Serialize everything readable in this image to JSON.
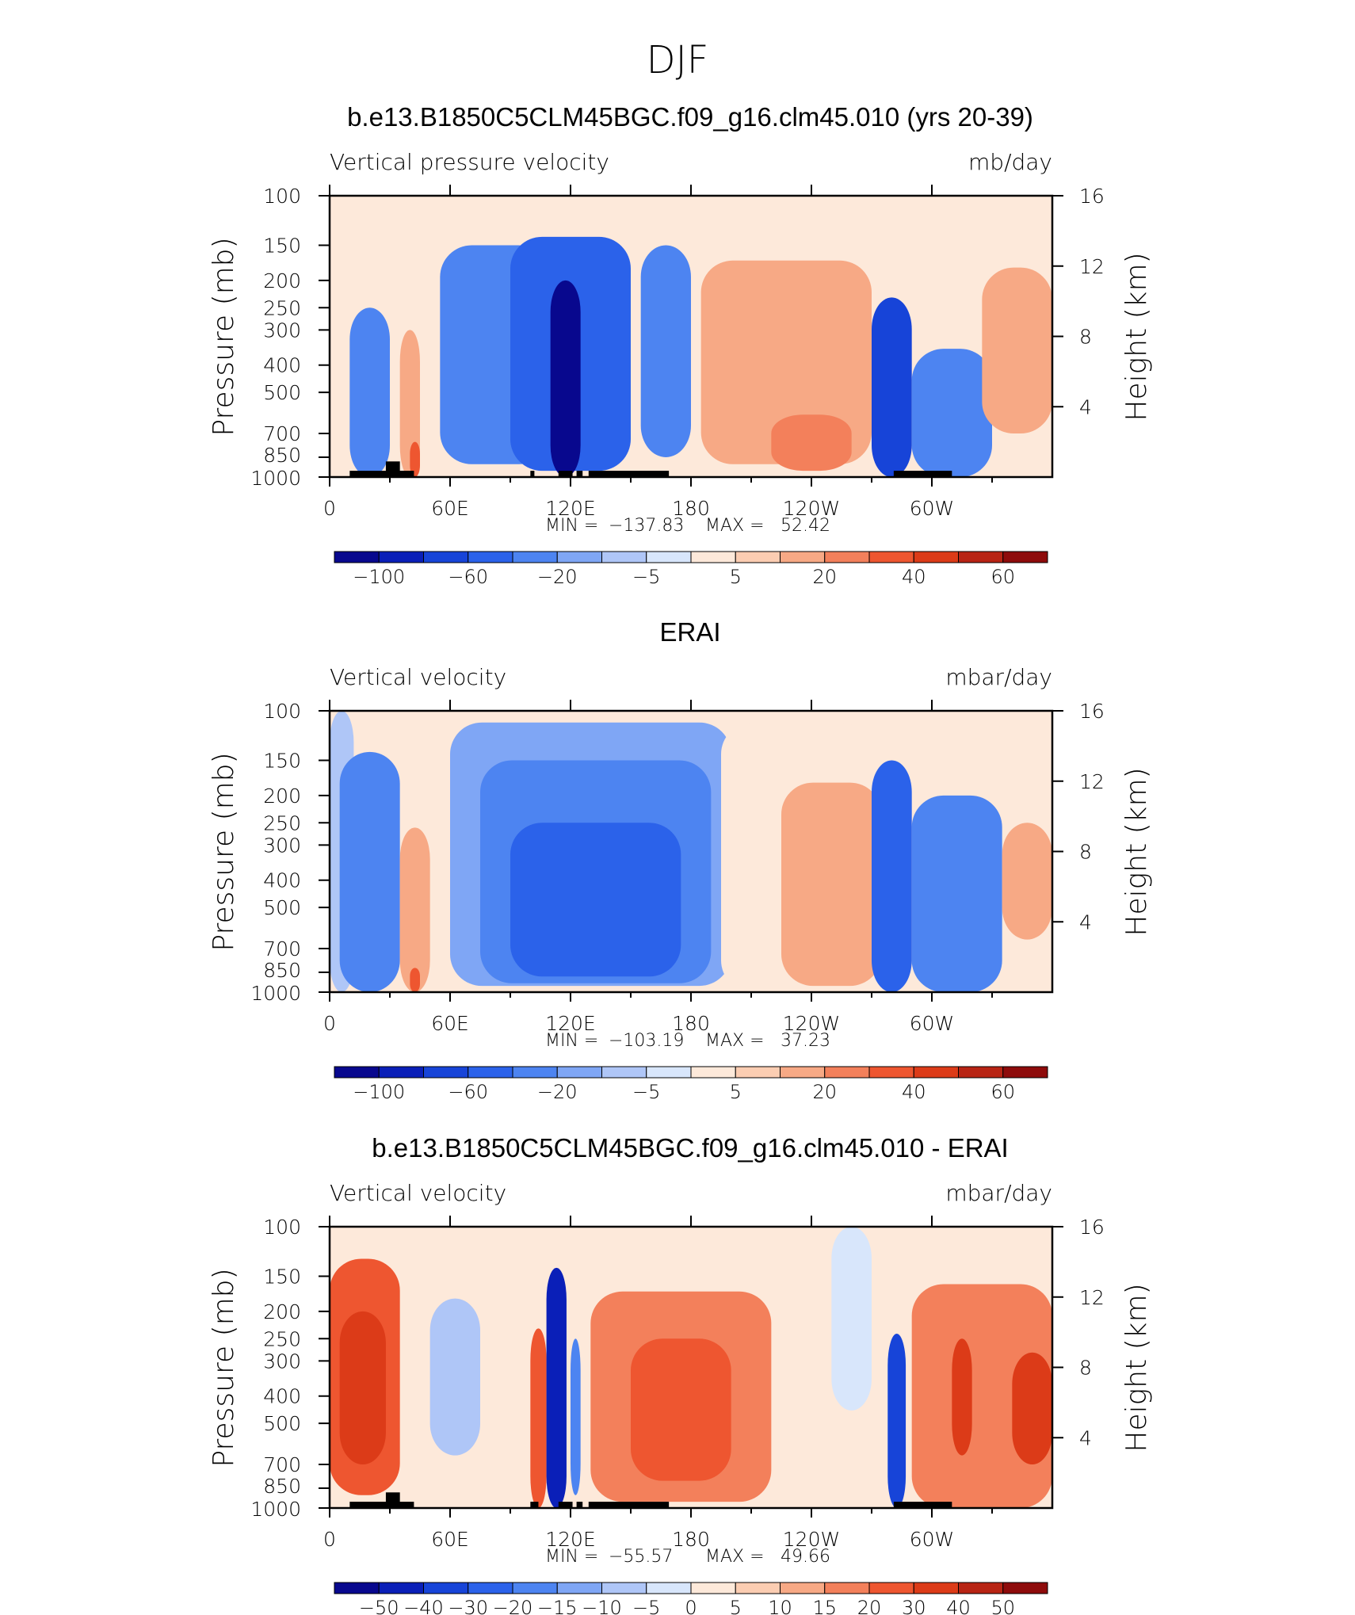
{
  "figure_title": "DJF",
  "panel_titles": [
    "b.e13.B1850C5CLM45BGC.f09_g16.clm45.010 (yrs 20-39)",
    "ERAI",
    "b.e13.B1850C5CLM45BGC.f09_g16.clm45.010 - ERAI"
  ],
  "colors": {
    "cmap": [
      "#08088e",
      "#0a1fb8",
      "#1744d8",
      "#2b62ea",
      "#4d84f1",
      "#7fa6f5",
      "#afc6f7",
      "#d8e6fb",
      "#fde9da",
      "#fbcdb2",
      "#f7a985",
      "#f3805b",
      "#ee5630",
      "#dc3b18",
      "#b82414",
      "#8e0b0b"
    ],
    "axis": "#000000"
  },
  "chart_data": [
    {
      "type": "heatmap",
      "title": "b.e13.B1850C5CLM45BGC.f09_g16.clm45.010 (yrs 20-39)",
      "left_label": "Vertical pressure velocity",
      "units": "mb/day",
      "ylabel": "Pressure (mb)",
      "ylabel_right": "Height (km)",
      "x_ticks": [
        "0",
        "60E",
        "120E",
        "180",
        "120W",
        "60W"
      ],
      "x_range": [
        0,
        360
      ],
      "y_ticks": [
        "100",
        "150",
        "200",
        "250",
        "300",
        "400",
        "500",
        "700",
        "850",
        "1000"
      ],
      "y_range_mb": [
        100,
        1000
      ],
      "y_log": true,
      "height_ticks": [
        "16",
        "12",
        "8",
        "4"
      ],
      "stats": {
        "min_label": "MIN =",
        "min": "−137.83",
        "max_label": "MAX =",
        "max": "52.42"
      },
      "colorbar_labels": [
        "−100",
        "−60",
        "−20",
        "−5",
        "5",
        "20",
        "40",
        "60"
      ],
      "levels": [
        -120,
        -100,
        -80,
        -60,
        -40,
        -20,
        -10,
        -5,
        0,
        5,
        10,
        20,
        30,
        40,
        50,
        60,
        80
      ],
      "fields": [
        {
          "lon": [
            0,
            10
          ],
          "mb": [
            100,
            1000
          ],
          "value": 3
        },
        {
          "lon": [
            10,
            30
          ],
          "mb": [
            250,
            1000
          ],
          "value": -35
        },
        {
          "lon": [
            35,
            45
          ],
          "mb": [
            300,
            1000
          ],
          "value": 15
        },
        {
          "lon": [
            40,
            45
          ],
          "mb": [
            750,
            1000
          ],
          "value": 35
        },
        {
          "lon": [
            55,
            110
          ],
          "mb": [
            150,
            900
          ],
          "value": -40
        },
        {
          "lon": [
            90,
            150
          ],
          "mb": [
            140,
            950
          ],
          "value": -60
        },
        {
          "lon": [
            110,
            125
          ],
          "mb": [
            200,
            1000
          ],
          "value": -110
        },
        {
          "lon": [
            155,
            180
          ],
          "mb": [
            150,
            850
          ],
          "value": -25
        },
        {
          "lon": [
            185,
            270
          ],
          "mb": [
            170,
            900
          ],
          "value": 15
        },
        {
          "lon": [
            220,
            260
          ],
          "mb": [
            600,
            950
          ],
          "value": 25
        },
        {
          "lon": [
            270,
            290
          ],
          "mb": [
            230,
            1000
          ],
          "value": -70
        },
        {
          "lon": [
            290,
            330
          ],
          "mb": [
            350,
            1000
          ],
          "value": -30
        },
        {
          "lon": [
            325,
            360
          ],
          "mb": [
            180,
            700
          ],
          "value": 18
        }
      ],
      "land": [
        {
          "lon": [
            10,
            42
          ],
          "mb": [
            950,
            1000
          ]
        },
        {
          "lon": [
            28,
            35
          ],
          "mb": [
            880,
            1000
          ]
        },
        {
          "lon": [
            100,
            102
          ],
          "mb": [
            950,
            1000
          ]
        },
        {
          "lon": [
            114,
            121
          ],
          "mb": [
            950,
            1000
          ]
        },
        {
          "lon": [
            123,
            126
          ],
          "mb": [
            950,
            1000
          ]
        },
        {
          "lon": [
            129,
            169
          ],
          "mb": [
            950,
            1000
          ]
        },
        {
          "lon": [
            281,
            310
          ],
          "mb": [
            950,
            1000
          ]
        }
      ]
    },
    {
      "type": "heatmap",
      "title": "ERAI",
      "left_label": "Vertical velocity",
      "units": "mbar/day",
      "ylabel": "Pressure (mb)",
      "ylabel_right": "Height (km)",
      "x_ticks": [
        "0",
        "60E",
        "120E",
        "180",
        "120W",
        "60W"
      ],
      "x_range": [
        0,
        360
      ],
      "y_ticks": [
        "100",
        "150",
        "200",
        "250",
        "300",
        "400",
        "500",
        "700",
        "850",
        "1000"
      ],
      "y_range_mb": [
        100,
        1000
      ],
      "y_log": true,
      "height_ticks": [
        "16",
        "12",
        "8",
        "4"
      ],
      "stats": {
        "min_label": "MIN =",
        "min": "−103.19",
        "max_label": "MAX =",
        "max": "37.23"
      },
      "colorbar_labels": [
        "−100",
        "−60",
        "−20",
        "−5",
        "5",
        "20",
        "40",
        "60"
      ],
      "levels": [
        -120,
        -100,
        -80,
        -60,
        -40,
        -20,
        -10,
        -5,
        0,
        5,
        10,
        20,
        30,
        40,
        50,
        60,
        80
      ],
      "fields": [
        {
          "lon": [
            0,
            12
          ],
          "mb": [
            100,
            1000
          ],
          "value": -8
        },
        {
          "lon": [
            5,
            35
          ],
          "mb": [
            140,
            1000
          ],
          "value": -35
        },
        {
          "lon": [
            35,
            50
          ],
          "mb": [
            260,
            1000
          ],
          "value": 15
        },
        {
          "lon": [
            40,
            45
          ],
          "mb": [
            820,
            1000
          ],
          "value": 30
        },
        {
          "lon": [
            60,
            200
          ],
          "mb": [
            110,
            950
          ],
          "value": -12
        },
        {
          "lon": [
            75,
            190
          ],
          "mb": [
            150,
            930
          ],
          "value": -35
        },
        {
          "lon": [
            90,
            175
          ],
          "mb": [
            250,
            880
          ],
          "value": -50
        },
        {
          "lon": [
            195,
            270
          ],
          "mb": [
            110,
            1000
          ],
          "value": 4
        },
        {
          "lon": [
            225,
            275
          ],
          "mb": [
            180,
            950
          ],
          "value": 14
        },
        {
          "lon": [
            270,
            290
          ],
          "mb": [
            150,
            1000
          ],
          "value": -55
        },
        {
          "lon": [
            290,
            335
          ],
          "mb": [
            200,
            1000
          ],
          "value": -28
        },
        {
          "lon": [
            335,
            360
          ],
          "mb": [
            250,
            650
          ],
          "value": 12
        }
      ],
      "land": []
    },
    {
      "type": "heatmap",
      "title": "b.e13.B1850C5CLM45BGC.f09_g16.clm45.010 - ERAI",
      "left_label": "Vertical velocity",
      "units": "mbar/day",
      "ylabel": "Pressure (mb)",
      "ylabel_right": "Height (km)",
      "x_ticks": [
        "0",
        "60E",
        "120E",
        "180",
        "120W",
        "60W"
      ],
      "x_range": [
        0,
        360
      ],
      "y_ticks": [
        "100",
        "150",
        "200",
        "250",
        "300",
        "400",
        "500",
        "700",
        "850",
        "1000"
      ],
      "y_range_mb": [
        100,
        1000
      ],
      "y_log": true,
      "height_ticks": [
        "16",
        "12",
        "8",
        "4"
      ],
      "stats": {
        "min_label": "MIN =",
        "min": "−55.57",
        "max_label": "MAX =",
        "max": "49.66"
      },
      "colorbar_labels": [
        "−50",
        "−40",
        "−30",
        "−20",
        "−15",
        "−10",
        "−5",
        "0",
        "5",
        "10",
        "15",
        "20",
        "30",
        "40",
        "50"
      ],
      "levels": [
        -60,
        -50,
        -40,
        -30,
        -20,
        -15,
        -10,
        -5,
        0,
        5,
        10,
        15,
        20,
        30,
        40,
        50,
        60
      ],
      "fields": [
        {
          "lon": [
            0,
            360
          ],
          "mb": [
            100,
            1000
          ],
          "value": 2
        },
        {
          "lon": [
            0,
            35
          ],
          "mb": [
            130,
            900
          ],
          "value": 25
        },
        {
          "lon": [
            5,
            28
          ],
          "mb": [
            200,
            700
          ],
          "value": 38
        },
        {
          "lon": [
            50,
            75
          ],
          "mb": [
            180,
            650
          ],
          "value": -8
        },
        {
          "lon": [
            100,
            108
          ],
          "mb": [
            230,
            1000
          ],
          "value": 28
        },
        {
          "lon": [
            108,
            118
          ],
          "mb": [
            140,
            1000
          ],
          "value": -45
        },
        {
          "lon": [
            120,
            125
          ],
          "mb": [
            250,
            900
          ],
          "value": -20
        },
        {
          "lon": [
            130,
            220
          ],
          "mb": [
            170,
            950
          ],
          "value": 15
        },
        {
          "lon": [
            150,
            200
          ],
          "mb": [
            250,
            800
          ],
          "value": 28
        },
        {
          "lon": [
            250,
            270
          ],
          "mb": [
            100,
            450
          ],
          "value": -4
        },
        {
          "lon": [
            278,
            287
          ],
          "mb": [
            240,
            1000
          ],
          "value": -40
        },
        {
          "lon": [
            290,
            360
          ],
          "mb": [
            160,
            1000
          ],
          "value": 18
        },
        {
          "lon": [
            310,
            320
          ],
          "mb": [
            250,
            650
          ],
          "value": 35
        },
        {
          "lon": [
            340,
            360
          ],
          "mb": [
            280,
            700
          ],
          "value": 30
        }
      ],
      "land": [
        {
          "lon": [
            10,
            42
          ],
          "mb": [
            950,
            1000
          ]
        },
        {
          "lon": [
            28,
            35
          ],
          "mb": [
            880,
            1000
          ]
        },
        {
          "lon": [
            100,
            104
          ],
          "mb": [
            950,
            1000
          ]
        },
        {
          "lon": [
            114,
            121
          ],
          "mb": [
            950,
            1000
          ]
        },
        {
          "lon": [
            123,
            126
          ],
          "mb": [
            950,
            1000
          ]
        },
        {
          "lon": [
            129,
            169
          ],
          "mb": [
            950,
            1000
          ]
        },
        {
          "lon": [
            281,
            310
          ],
          "mb": [
            950,
            1000
          ]
        }
      ]
    }
  ]
}
